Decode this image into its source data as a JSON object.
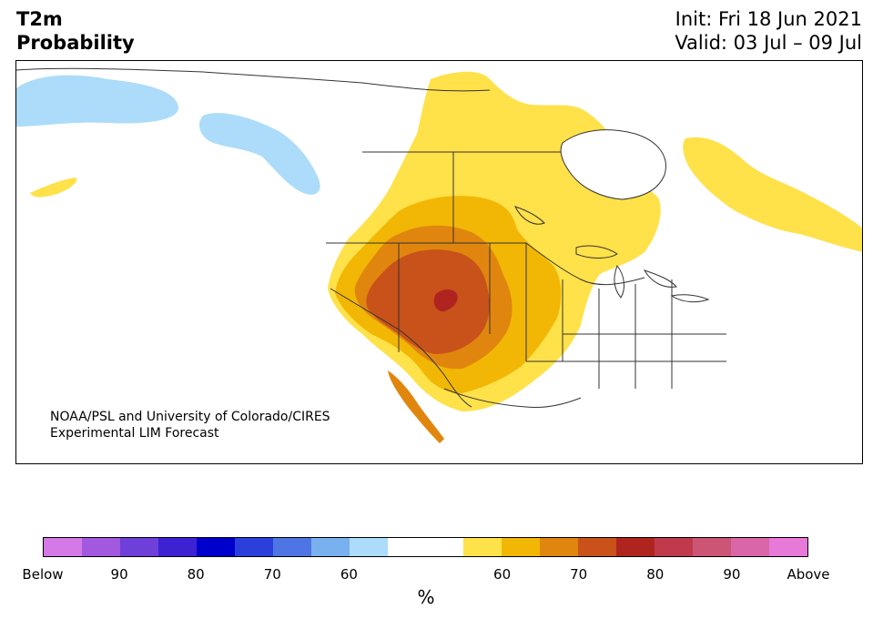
{
  "header": {
    "title_line1": "T2m",
    "title_line2": "Probability",
    "init": "Init: Fri 18 Jun 2021",
    "valid": "Valid: 03 Jul – 09 Jul"
  },
  "map": {
    "credit_line1": "NOAA/PSL and University of Colorado/CIRES",
    "credit_line2": "Experimental LIM Forecast"
  },
  "colorbar": {
    "colors": [
      "#d479e6",
      "#a259e0",
      "#6e3fd9",
      "#3d22d4",
      "#0000cc",
      "#2a3fdc",
      "#4e75e3",
      "#79b0ee",
      "#acdcfa",
      "#ffffff",
      "#ffffff",
      "#ffe14a",
      "#f2b705",
      "#e0860e",
      "#c8521a",
      "#b0241f",
      "#c03a4c",
      "#cc5575",
      "#d966a6",
      "#e77ad8"
    ],
    "labels": [
      "Below",
      "90",
      "80",
      "70",
      "60",
      "",
      "60",
      "70",
      "80",
      "90",
      "Above"
    ],
    "unit": "%",
    "accent_colors": {
      "cold_60": "#acdcfa",
      "warm_60": "#ffe14a",
      "warm_70": "#f2b705",
      "warm_80": "#e0860e",
      "warm_90": "#c8521a",
      "warm_above": "#b0241f"
    }
  }
}
